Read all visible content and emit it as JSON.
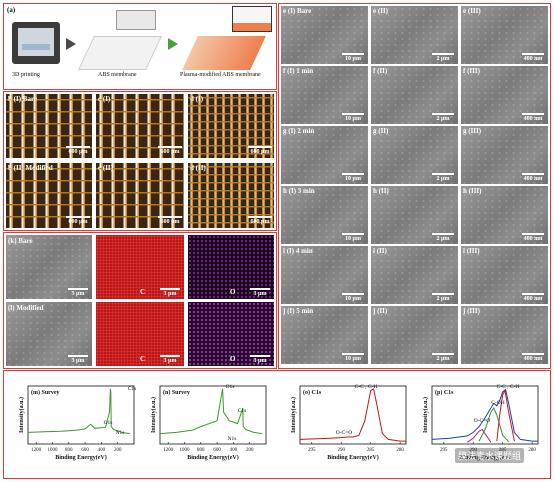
{
  "panel_a": {
    "label": "(a)",
    "steps": [
      "3D printing",
      "ABS membrane",
      "Plasma-modified ABS membrane"
    ]
  },
  "panel_b_row1": {
    "labels": [
      "b (I) Bare",
      "c (I)",
      "d (I)"
    ],
    "scale": [
      "600 μm",
      "600 μm",
      "600 μm"
    ]
  },
  "panel_b_row2": {
    "labels": [
      "b (II) Modified",
      "c (II)",
      "d (II)"
    ],
    "scale": [
      "600 μm",
      "600 μm",
      "600 μm"
    ]
  },
  "panel_k": {
    "label": "(k) Bare",
    "elements": [
      "C",
      "O"
    ],
    "scale": "3 μm"
  },
  "panel_l": {
    "label": "(l) Modified",
    "elements": [
      "C",
      "O"
    ],
    "scale": "3 μm"
  },
  "sem_rows": [
    {
      "labels": [
        "e (I) Bare",
        "e (II)",
        "e (III)"
      ]
    },
    {
      "labels": [
        "f (I) 1 min",
        "f (II)",
        "f (III)"
      ]
    },
    {
      "labels": [
        "g (I) 2 min",
        "g (II)",
        "g (III)"
      ]
    },
    {
      "labels": [
        "h (I) 3 min",
        "h (II)",
        "h (III)"
      ]
    },
    {
      "labels": [
        "i (I) 4 min",
        "i (II)",
        "i (III)"
      ]
    },
    {
      "labels": [
        "j (I) 5 min",
        "j (II)",
        "j (III)"
      ]
    }
  ],
  "sem_scales": [
    "10 μm",
    "2 μm",
    "400 nm"
  ],
  "chart_data": [
    {
      "type": "line",
      "title": "(m) Survey",
      "xlabel": "Binding Energy(eV)",
      "ylabel": "Intensity(a.u.)",
      "xlim": [
        1300,
        0
      ],
      "x_ticks": [
        "1200",
        "1000",
        "800",
        "600",
        "400",
        "200"
      ],
      "annotations": [
        "C1s",
        "O1s",
        "N1s"
      ],
      "series": [
        {
          "x": [
            1300,
            1100,
            900,
            800,
            700,
            600,
            532,
            480,
            400,
            350,
            300,
            290,
            285,
            280,
            250,
            150,
            50
          ],
          "y": [
            0.2,
            0.21,
            0.22,
            0.23,
            0.24,
            0.26,
            0.34,
            0.27,
            0.28,
            0.29,
            0.55,
            0.95,
            0.9,
            0.3,
            0.25,
            0.2,
            0.18
          ]
        }
      ],
      "color": "#3a9a2a"
    },
    {
      "type": "line",
      "title": "(n) Survey",
      "xlabel": "Binding Energy(eV)",
      "ylabel": "Intensity(a.u.)",
      "xlim": [
        1300,
        0
      ],
      "x_ticks": [
        "1200",
        "1000",
        "800",
        "600",
        "400",
        "200"
      ],
      "annotations": [
        "O1s",
        "C1s",
        "N1s"
      ],
      "series": [
        {
          "x": [
            1300,
            1100,
            900,
            800,
            700,
            600,
            540,
            532,
            520,
            450,
            400,
            350,
            300,
            285,
            280,
            250,
            150,
            50
          ],
          "y": [
            0.18,
            0.2,
            0.24,
            0.3,
            0.35,
            0.4,
            0.9,
            0.95,
            0.55,
            0.4,
            0.38,
            0.35,
            0.55,
            0.62,
            0.3,
            0.25,
            0.2,
            0.18
          ]
        }
      ],
      "color": "#3a9a2a"
    },
    {
      "type": "line",
      "title": "(o) C1s",
      "xlabel": "Binding Energy(eV)",
      "ylabel": "Intensity(a.u.)",
      "xlim": [
        297,
        279
      ],
      "x_ticks": [
        "295",
        "290",
        "285",
        "280"
      ],
      "annotations": [
        "C-C , C-H",
        "O-C=O"
      ],
      "series": [
        {
          "x": [
            297,
            294,
            292,
            290,
            289,
            288,
            287,
            286,
            285,
            284.5,
            284,
            283,
            282,
            280,
            279
          ],
          "y": [
            0.08,
            0.09,
            0.1,
            0.11,
            0.12,
            0.12,
            0.15,
            0.4,
            0.92,
            0.95,
            0.7,
            0.18,
            0.08,
            0.05,
            0.05
          ]
        }
      ],
      "color": "#c01818"
    },
    {
      "type": "line",
      "title": "(p) C1s",
      "xlabel": "Binding Energy(eV)",
      "ylabel": "Intensity(a.u.)",
      "xlim": [
        297,
        279
      ],
      "x_ticks": [
        "295",
        "290",
        "285",
        "280"
      ],
      "annotations": [
        "C-C , C-H",
        "C-OH",
        "O-C=O"
      ],
      "series": [
        {
          "x": [
            297,
            294,
            291,
            290,
            289,
            288,
            287,
            286.5,
            286,
            285.5,
            285,
            284.5,
            284,
            283,
            282,
            280,
            279
          ],
          "y": [
            0.08,
            0.1,
            0.14,
            0.2,
            0.3,
            0.45,
            0.62,
            0.7,
            0.66,
            0.75,
            0.9,
            0.94,
            0.7,
            0.2,
            0.08,
            0.05,
            0.05
          ],
          "color": "#1a3fb0"
        },
        {
          "x": [
            289,
            288,
            287,
            286.5,
            286,
            285,
            284
          ],
          "y": [
            0.05,
            0.25,
            0.55,
            0.62,
            0.5,
            0.15,
            0.04
          ],
          "color": "#2a9a2a"
        },
        {
          "x": [
            286,
            285.5,
            285,
            284.6,
            284,
            283
          ],
          "y": [
            0.05,
            0.5,
            0.85,
            0.92,
            0.55,
            0.05
          ],
          "color": "#d01818"
        },
        {
          "x": [
            291,
            290,
            289,
            288.5,
            288,
            287
          ],
          "y": [
            0.03,
            0.1,
            0.22,
            0.25,
            0.18,
            0.03
          ],
          "color": "#c02080"
        }
      ]
    }
  ],
  "watermark": "膜法青水课题组"
}
